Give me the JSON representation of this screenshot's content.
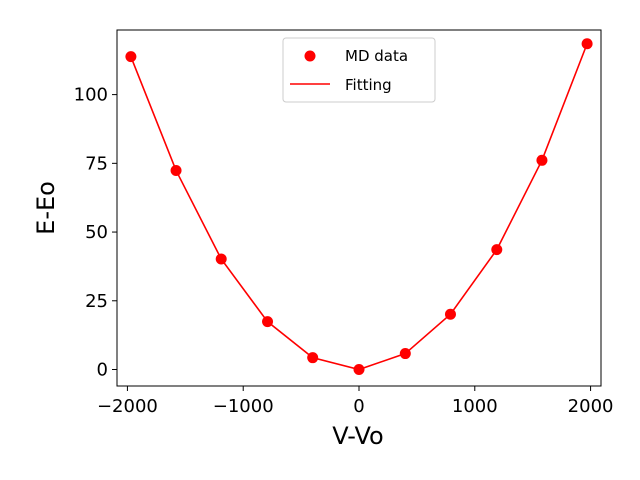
{
  "chart_data": {
    "type": "line",
    "title": "",
    "xlabel": "V-Vo",
    "ylabel": "E-Eo",
    "xlim": [
      -2090,
      2090
    ],
    "ylim": [
      -6,
      123.5
    ],
    "xticks": [
      -2000,
      -1000,
      0,
      1000,
      2000
    ],
    "xtick_labels": [
      "−2000",
      "−1000",
      "0",
      "1000",
      "2000"
    ],
    "yticks": [
      0,
      25,
      50,
      75,
      100
    ],
    "ytick_labels": [
      "0",
      "25",
      "50",
      "75",
      "100"
    ],
    "grid": false,
    "legend": {
      "placement": "top-center",
      "entries": [
        "MD data",
        "Fitting"
      ]
    },
    "series": [
      {
        "name": "MD data",
        "kind": "scatter",
        "color": "#ff0000",
        "x": [
          -1970,
          -1580,
          -1190,
          -790,
          -400,
          0,
          400,
          790,
          1190,
          1580,
          1970
        ],
        "y": [
          113.8,
          72.4,
          40.2,
          17.4,
          4.3,
          0.0,
          5.8,
          20.1,
          43.6,
          76.1,
          118.5
        ]
      },
      {
        "name": "Fitting",
        "kind": "line",
        "color": "#ff0000",
        "x": [
          -1970,
          -1580,
          -1190,
          -790,
          -400,
          0,
          400,
          790,
          1190,
          1580,
          1970
        ],
        "y": [
          113.8,
          72.4,
          40.2,
          17.4,
          4.3,
          0.0,
          5.8,
          20.1,
          43.6,
          76.1,
          118.5
        ]
      }
    ]
  }
}
